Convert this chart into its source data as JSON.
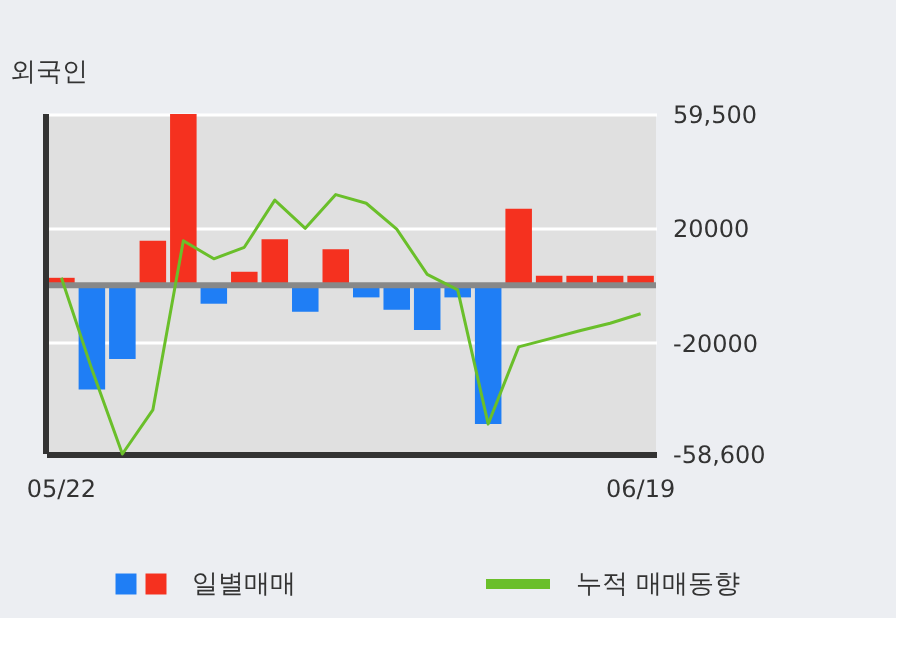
{
  "chart_data": {
    "type": "bar",
    "title": "외국인",
    "categories": [
      "05/22",
      null,
      null,
      null,
      null,
      null,
      null,
      null,
      null,
      null,
      null,
      null,
      null,
      null,
      null,
      null,
      null,
      null,
      null,
      "06/19"
    ],
    "series": [
      {
        "name": "일별매매",
        "colors": [
          "#f5311f",
          "#1f7ef5",
          "#1f7ef5",
          "#f5311f",
          "#f5311f",
          "#1f7ef5",
          "#f5311f",
          "#f5311f",
          "#1f7ef5",
          "#f5311f",
          "#1f7ef5",
          "#1f7ef5",
          "#1f7ef5",
          "#1f7ef5",
          "#1f7ef5",
          "#f5311f",
          "#f5311f",
          "#f5311f",
          "#f5311f",
          "#f5311f"
        ],
        "values": [
          2600,
          -36200,
          -25600,
          15500,
          59500,
          -6400,
          4700,
          16000,
          -9200,
          12500,
          -4200,
          -8500,
          -15500,
          -4200,
          -48200,
          26600,
          3300,
          3300,
          3300,
          3300
        ]
      },
      {
        "name": "누적 매매동향",
        "type": "line",
        "color": "#6abf2a",
        "values": [
          2600,
          -29200,
          -58600,
          -43300,
          15500,
          9200,
          13200,
          29600,
          19800,
          31500,
          28500,
          19500,
          3800,
          -1600,
          -48200,
          -21400,
          -18600,
          -15800,
          -13200,
          -9900
        ]
      }
    ],
    "ylim": [
      -58600,
      59500
    ],
    "yticks": [
      {
        "value": 59500,
        "label": "59,500"
      },
      20000,
      -20000,
      {
        "value": -58600,
        "label": "-58,600"
      }
    ],
    "ref_lines": [
      {
        "axis": "y",
        "value": 0,
        "color": "#888888"
      }
    ],
    "grid": "y",
    "legend": "bottom"
  }
}
